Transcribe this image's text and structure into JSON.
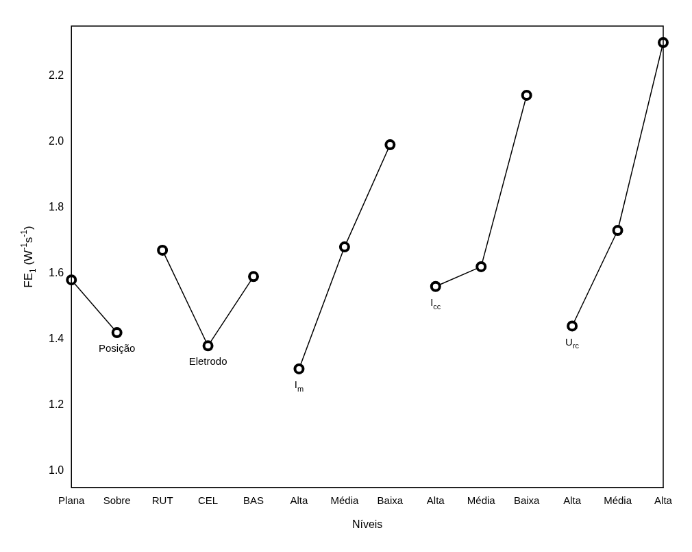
{
  "chart_data": {
    "type": "line",
    "xlabel": "Níveis",
    "ylabel": "FE$_{1}$ (W$^{-1}$s$^{-1}$)",
    "categories": [
      "Plana",
      "Sobre",
      "RUT",
      "CEL",
      "BAS",
      "Alta",
      "Média",
      "Baixa",
      "Alta",
      "Média",
      "Baixa",
      "Alta",
      "Média",
      "Alta"
    ],
    "series": [
      {
        "name": "Posição",
        "color": "#000000",
        "values": [
          1.58,
          1.42,
          null,
          null,
          null,
          null,
          null,
          null,
          null,
          null,
          null,
          null,
          null,
          null
        ]
      },
      {
        "name": "Eletrodo",
        "color": "#000000",
        "values": [
          null,
          null,
          1.67,
          1.38,
          1.59,
          null,
          null,
          null,
          null,
          null,
          null,
          null,
          null,
          null
        ]
      },
      {
        "name": "I$_{m}$",
        "color": "#000000",
        "values": [
          null,
          null,
          null,
          null,
          null,
          1.31,
          1.68,
          1.99,
          null,
          null,
          null,
          null,
          null,
          null
        ]
      },
      {
        "name": "I$_{cc}$",
        "color": "#000000",
        "values": [
          null,
          null,
          null,
          null,
          null,
          null,
          null,
          null,
          1.56,
          1.62,
          2.14,
          null,
          null,
          null
        ]
      },
      {
        "name": "U$_{rc}$",
        "color": "#000000",
        "values": [
          null,
          null,
          null,
          null,
          null,
          null,
          null,
          null,
          null,
          null,
          null,
          1.44,
          1.73,
          2.3
        ]
      }
    ],
    "ylim": [
      0.95,
      2.35
    ],
    "yticks": [
      {
        "value": 1,
        "label": "1.0"
      },
      1.2,
      1.4,
      1.6,
      1.8,
      {
        "value": 2,
        "label": "2.0"
      },
      2.2
    ],
    "grid": false,
    "legend": false,
    "marker": "circle",
    "line_style": "solid"
  }
}
